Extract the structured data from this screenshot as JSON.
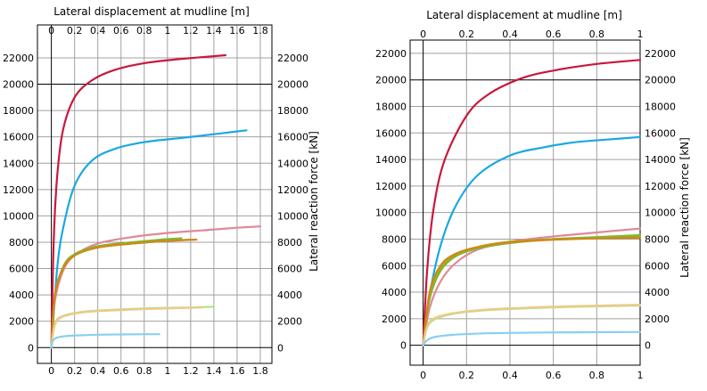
{
  "chart_data": [
    {
      "type": "line",
      "title": "",
      "xlabel": "Lateral displacement at mudline [m]",
      "ylabel": "Lateral reaction force [kN]",
      "xlim": [
        -0.12,
        1.9
      ],
      "ylim": [
        -1200,
        24500
      ],
      "xticks": [
        "0",
        "0.2",
        "0.4",
        "0.6",
        "0.8",
        "1",
        "1.2",
        "1.4",
        "1.6",
        "1.8"
      ],
      "yticks": [
        "0",
        "2000",
        "4000",
        "6000",
        "8000",
        "10000",
        "12000",
        "14000",
        "16000",
        "18000",
        "20000",
        "22000"
      ],
      "grid": true,
      "reference_line_y": 20000,
      "series": [
        {
          "color": "#c8183c",
          "x": [
            0,
            0.02,
            0.05,
            0.1,
            0.2,
            0.35,
            0.55,
            0.8,
            1.1,
            1.5
          ],
          "y": [
            0,
            8000,
            13000,
            16500,
            19000,
            20300,
            21100,
            21600,
            21900,
            22200
          ]
        },
        {
          "color": "#1aa8e0",
          "x": [
            0,
            0.05,
            0.1,
            0.2,
            0.35,
            0.55,
            0.8,
            1.1,
            1.4,
            1.68
          ],
          "y": [
            0,
            6000,
            9000,
            12300,
            14200,
            15100,
            15600,
            15900,
            16200,
            16500
          ]
        },
        {
          "color": "#e08898",
          "x": [
            0,
            0.03,
            0.1,
            0.2,
            0.4,
            0.7,
            1.0,
            1.3,
            1.6,
            1.8
          ],
          "y": [
            0,
            3500,
            5800,
            7000,
            7900,
            8400,
            8700,
            8900,
            9100,
            9200
          ]
        },
        {
          "color": "#b8a020",
          "x": [
            0,
            0.03,
            0.1,
            0.2,
            0.4,
            0.7,
            1.0,
            1.2
          ],
          "y": [
            0,
            4000,
            6000,
            7000,
            7600,
            7900,
            8100,
            8200
          ]
        },
        {
          "color": "#80b830",
          "x": [
            0,
            0.03,
            0.1,
            0.2,
            0.4,
            0.7,
            0.95,
            1.12
          ],
          "y": [
            0,
            3800,
            6100,
            7100,
            7700,
            8000,
            8200,
            8300
          ]
        },
        {
          "color": "#d08818",
          "x": [
            0,
            0.03,
            0.1,
            0.2,
            0.4,
            0.7,
            1.0,
            1.25
          ],
          "y": [
            0,
            3900,
            6000,
            7000,
            7600,
            7900,
            8100,
            8200
          ]
        },
        {
          "color": "#b8e088",
          "x": [
            0,
            0.03,
            0.1,
            0.3,
            0.6,
            0.9,
            1.2,
            1.4
          ],
          "y": [
            0,
            1800,
            2400,
            2750,
            2900,
            3000,
            3050,
            3100
          ]
        },
        {
          "color": "#f0c888",
          "x": [
            0,
            0.03,
            0.1,
            0.3,
            0.6,
            0.9,
            1.1,
            1.3
          ],
          "y": [
            0,
            1700,
            2350,
            2700,
            2850,
            2950,
            3000,
            3050
          ]
        },
        {
          "color": "#88d0f0",
          "x": [
            0,
            0.02,
            0.1,
            0.3,
            0.6,
            0.93
          ],
          "y": [
            0,
            600,
            850,
            950,
            1000,
            1020
          ]
        }
      ]
    },
    {
      "type": "line",
      "title": "",
      "xlabel": "Lateral displacement at mudline [m]",
      "ylabel": "Lateral reaction force [kN]",
      "xlim": [
        -0.06,
        1.0
      ],
      "ylim": [
        -1500,
        23000
      ],
      "xticks": [
        "0",
        "0.2",
        "0.4",
        "0.6",
        "0.8",
        "1"
      ],
      "yticks": [
        "0",
        "2000",
        "4000",
        "6000",
        "8000",
        "10000",
        "12000",
        "14000",
        "16000",
        "18000",
        "20000",
        "22000"
      ],
      "grid": true,
      "reference_line_y": 20000,
      "series": [
        {
          "color": "#c8183c",
          "x": [
            0,
            0.02,
            0.05,
            0.1,
            0.2,
            0.3,
            0.45,
            0.6,
            0.8,
            1.0
          ],
          "y": [
            0,
            6000,
            10500,
            14000,
            17300,
            18900,
            20100,
            20700,
            21200,
            21500
          ]
        },
        {
          "color": "#1aa8e0",
          "x": [
            0,
            0.03,
            0.08,
            0.15,
            0.25,
            0.4,
            0.55,
            0.7,
            0.85,
            1.0
          ],
          "y": [
            0,
            3800,
            7500,
            10500,
            12800,
            14300,
            14900,
            15300,
            15500,
            15700
          ]
        },
        {
          "color": "#e08898",
          "x": [
            0,
            0.03,
            0.08,
            0.15,
            0.25,
            0.4,
            0.6,
            0.8,
            1.0
          ],
          "y": [
            0,
            2800,
            4800,
            6200,
            7200,
            7800,
            8200,
            8500,
            8800
          ]
        },
        {
          "color": "#b8a020",
          "x": [
            0,
            0.03,
            0.08,
            0.15,
            0.25,
            0.4,
            0.6,
            0.8,
            1.0
          ],
          "y": [
            0,
            3800,
            5800,
            6800,
            7400,
            7800,
            8000,
            8100,
            8200
          ]
        },
        {
          "color": "#80b830",
          "x": [
            0,
            0.03,
            0.08,
            0.15,
            0.25,
            0.4,
            0.6,
            0.8,
            1.0
          ],
          "y": [
            0,
            3500,
            5600,
            6700,
            7300,
            7700,
            8000,
            8150,
            8300
          ]
        },
        {
          "color": "#d08818",
          "x": [
            0,
            0.03,
            0.08,
            0.15,
            0.25,
            0.4,
            0.6,
            0.8,
            1.0
          ],
          "y": [
            0,
            4000,
            6000,
            6900,
            7400,
            7750,
            7950,
            8050,
            8100
          ]
        },
        {
          "color": "#b8e088",
          "x": [
            0,
            0.02,
            0.06,
            0.15,
            0.3,
            0.5,
            0.7,
            1.0
          ],
          "y": [
            0,
            1400,
            2000,
            2400,
            2650,
            2800,
            2900,
            3000
          ]
        },
        {
          "color": "#f0c888",
          "x": [
            0,
            0.02,
            0.06,
            0.15,
            0.3,
            0.5,
            0.7,
            1.0
          ],
          "y": [
            0,
            1500,
            2100,
            2450,
            2700,
            2850,
            2950,
            3050
          ]
        },
        {
          "color": "#88d0f0",
          "x": [
            0,
            0.02,
            0.06,
            0.15,
            0.3,
            0.5,
            0.7,
            1.0
          ],
          "y": [
            0,
            400,
            650,
            800,
            900,
            950,
            980,
            1000
          ]
        }
      ]
    }
  ]
}
